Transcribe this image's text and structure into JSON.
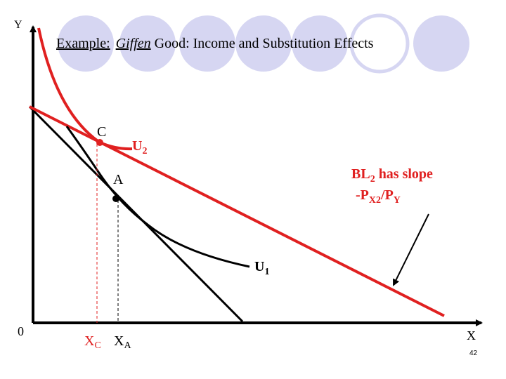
{
  "slide": {
    "title": {
      "lead": "Example:",
      "italic": "Giffen",
      "rest": "Good: Income and Substitution Effects"
    },
    "page_number": "42"
  },
  "axes": {
    "y_label": "Y",
    "x_label": "X",
    "origin": "0"
  },
  "points": {
    "c": "C",
    "a": "A"
  },
  "curves": {
    "u2": {
      "text": "U",
      "sub": "2"
    },
    "u1": {
      "text": "U",
      "sub": "1"
    }
  },
  "x_markers": [
    {
      "text": "X",
      "sub": "C"
    },
    {
      "text": "X",
      "sub": "A"
    }
  ],
  "annotation": {
    "line1": {
      "text": "BL",
      "sub": "2",
      "rest": " has slope"
    },
    "line2": {
      "text": "-P",
      "sub": "X2",
      "mid": "/P",
      "sub2": "Y"
    }
  }
}
